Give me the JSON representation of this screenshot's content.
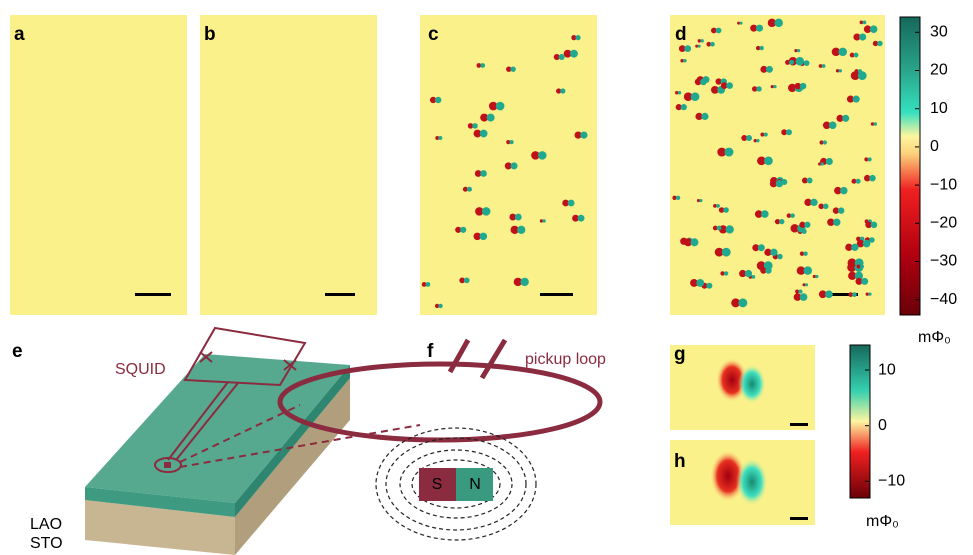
{
  "panel_labels": [
    "a",
    "b",
    "c",
    "d",
    "e",
    "f",
    "g",
    "h"
  ],
  "colorbar_top": {
    "lim": [
      -44,
      34
    ],
    "ticks": [
      30,
      20,
      10,
      0,
      {
        "value": -10,
        "label": "−10"
      },
      {
        "value": -20,
        "label": "−20"
      },
      {
        "value": -30,
        "label": "−30"
      },
      {
        "value": -40,
        "label": "−40"
      }
    ],
    "unit": "mΦ₀"
  },
  "colorbar_bottom": {
    "lim": [
      -13,
      14.5
    ],
    "ticks": [
      10,
      0,
      {
        "value": -10,
        "label": "−10"
      }
    ],
    "unit": "mΦ₀"
  },
  "schematic": {
    "squid": "SQUID",
    "pickup_loop": "pickup loop",
    "lao": "LAO",
    "sto": "STO",
    "magnet_s": "S",
    "magnet_n": "N"
  }
}
